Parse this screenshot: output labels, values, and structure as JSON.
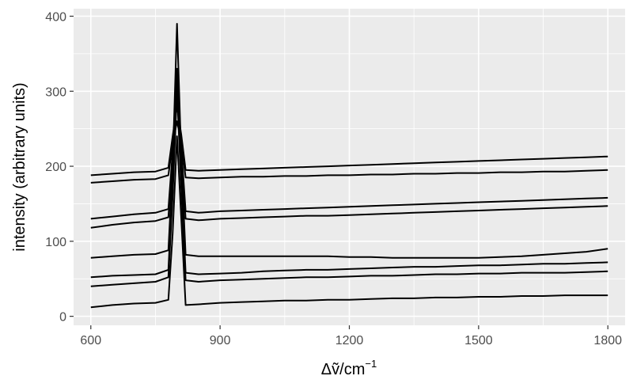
{
  "chart_data": {
    "type": "line",
    "title": "",
    "xlabel": "Δṽ/cm⁻¹",
    "xlabel_base": "Δṽ/cm",
    "xlabel_sup": "−1",
    "ylabel": "intensity (arbitrary units)",
    "xlim": [
      560,
      1840
    ],
    "ylim": [
      -12,
      410
    ],
    "x_ticks": [
      600,
      900,
      1200,
      1500,
      1800
    ],
    "x_tick_labels": [
      "600",
      "900",
      "1200",
      "1500",
      "1800"
    ],
    "y_ticks": [
      0,
      100,
      200,
      300,
      400
    ],
    "y_tick_labels": [
      "0",
      "100",
      "200",
      "300",
      "400"
    ],
    "grid": true,
    "legend": "none",
    "colors": {
      "panel": "#ebebeb",
      "grid": "#ffffff",
      "line": "#000000",
      "tick_text": "#4d4d4d"
    },
    "x": [
      600,
      650,
      700,
      750,
      780,
      790,
      800,
      810,
      820,
      850,
      900,
      950,
      1000,
      1050,
      1100,
      1150,
      1200,
      1250,
      1300,
      1350,
      1400,
      1450,
      1500,
      1550,
      1600,
      1650,
      1700,
      1750,
      1800
    ],
    "series": [
      {
        "values": [
          12,
          15,
          17,
          18,
          22,
          110,
          240,
          130,
          15,
          16,
          18,
          19,
          20,
          21,
          21,
          22,
          22,
          23,
          24,
          24,
          25,
          25,
          26,
          26,
          27,
          27,
          28,
          28,
          28
        ]
      },
      {
        "values": [
          40,
          42,
          44,
          46,
          52,
          160,
          300,
          170,
          48,
          46,
          48,
          49,
          50,
          51,
          52,
          52,
          53,
          54,
          54,
          55,
          56,
          56,
          57,
          57,
          58,
          58,
          58,
          59,
          60
        ]
      },
      {
        "values": [
          52,
          54,
          55,
          56,
          62,
          175,
          320,
          180,
          58,
          56,
          57,
          58,
          60,
          61,
          62,
          62,
          63,
          64,
          65,
          66,
          66,
          67,
          68,
          68,
          69,
          70,
          70,
          71,
          72
        ]
      },
      {
        "values": [
          78,
          80,
          82,
          83,
          88,
          200,
          390,
          210,
          82,
          80,
          80,
          80,
          80,
          80,
          80,
          80,
          79,
          79,
          78,
          78,
          78,
          78,
          78,
          79,
          80,
          82,
          84,
          86,
          90
        ]
      },
      {
        "values": [
          118,
          122,
          125,
          127,
          132,
          210,
          300,
          215,
          130,
          128,
          130,
          131,
          132,
          133,
          134,
          134,
          135,
          136,
          137,
          138,
          139,
          140,
          141,
          142,
          143,
          144,
          145,
          146,
          147
        ]
      },
      {
        "values": [
          130,
          133,
          136,
          138,
          143,
          220,
          330,
          225,
          140,
          138,
          140,
          141,
          142,
          143,
          144,
          145,
          146,
          147,
          148,
          149,
          150,
          151,
          152,
          153,
          154,
          155,
          156,
          157,
          158
        ]
      },
      {
        "values": [
          178,
          180,
          182,
          183,
          188,
          230,
          260,
          232,
          185,
          184,
          185,
          186,
          186,
          187,
          187,
          188,
          188,
          189,
          189,
          190,
          190,
          191,
          191,
          192,
          192,
          193,
          193,
          194,
          195
        ]
      },
      {
        "values": [
          188,
          190,
          192,
          193,
          198,
          240,
          280,
          242,
          195,
          194,
          195,
          196,
          197,
          198,
          199,
          200,
          201,
          202,
          203,
          204,
          205,
          206,
          207,
          208,
          209,
          210,
          211,
          212,
          213
        ]
      }
    ]
  }
}
